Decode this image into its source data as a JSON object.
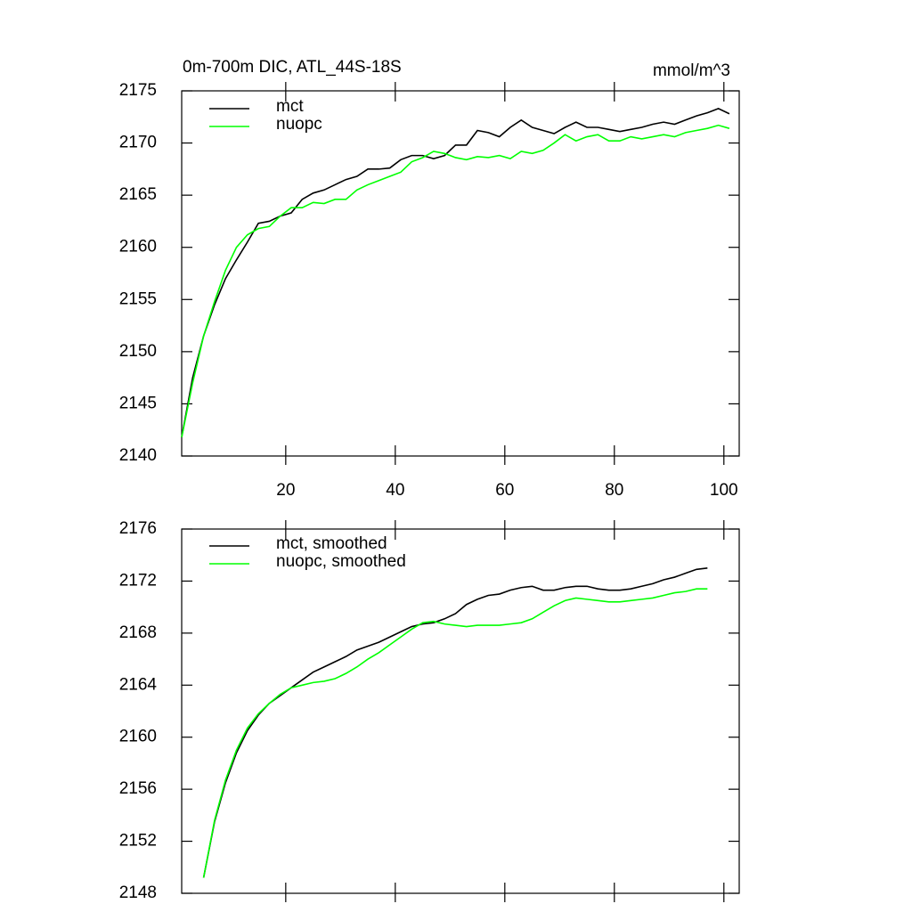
{
  "chart_data": [
    {
      "type": "line",
      "title": "0m-700m DIC, ATL_44S-18S",
      "units": "mmol/m^3",
      "x": [
        1,
        3,
        5,
        7,
        9,
        11,
        13,
        15,
        17,
        19,
        21,
        23,
        25,
        27,
        29,
        31,
        33,
        35,
        37,
        39,
        41,
        43,
        45,
        47,
        49,
        51,
        53,
        55,
        57,
        59,
        61,
        63,
        65,
        67,
        69,
        71,
        73,
        75,
        77,
        79,
        81,
        83,
        85,
        87,
        89,
        91,
        93,
        95,
        97,
        99,
        101
      ],
      "series": [
        {
          "name": "mct",
          "color": "#000000",
          "values": [
            2141.8,
            2147.5,
            2151.5,
            2154.5,
            2157.0,
            2158.8,
            2160.5,
            2162.3,
            2162.5,
            2163.0,
            2163.3,
            2164.6,
            2165.2,
            2165.5,
            2166.0,
            2166.5,
            2166.8,
            2167.5,
            2167.5,
            2167.6,
            2168.4,
            2168.8,
            2168.8,
            2168.5,
            2168.8,
            2169.8,
            2169.8,
            2171.2,
            2171.0,
            2170.6,
            2171.5,
            2172.2,
            2171.5,
            2171.2,
            2170.9,
            2171.5,
            2172.0,
            2171.5,
            2171.5,
            2171.3,
            2171.1,
            2171.3,
            2171.5,
            2171.8,
            2172.0,
            2171.8,
            2172.2,
            2172.6,
            2172.9,
            2173.3,
            2172.8
          ]
        },
        {
          "name": "nuopc",
          "color": "#00ff00",
          "values": [
            2141.8,
            2147.0,
            2151.5,
            2154.8,
            2157.8,
            2160.0,
            2161.2,
            2161.8,
            2162.0,
            2163.0,
            2163.8,
            2163.8,
            2164.3,
            2164.2,
            2164.6,
            2164.6,
            2165.5,
            2166.0,
            2166.4,
            2166.8,
            2167.2,
            2168.2,
            2168.6,
            2169.2,
            2169.0,
            2168.6,
            2168.4,
            2168.7,
            2168.6,
            2168.8,
            2168.5,
            2169.2,
            2169.0,
            2169.3,
            2170.0,
            2170.8,
            2170.2,
            2170.6,
            2170.8,
            2170.2,
            2170.2,
            2170.6,
            2170.4,
            2170.6,
            2170.8,
            2170.6,
            2171.0,
            2171.2,
            2171.4,
            2171.7,
            2171.4
          ]
        }
      ],
      "xlim": [
        1,
        102.8
      ],
      "xticks": [
        20,
        40,
        60,
        80,
        100
      ],
      "ylim": [
        2140,
        2175
      ],
      "yticks": [
        2140,
        2145,
        2150,
        2155,
        2160,
        2165,
        2170,
        2175
      ]
    },
    {
      "type": "line",
      "x": [
        5,
        7,
        9,
        11,
        13,
        15,
        17,
        19,
        21,
        23,
        25,
        27,
        29,
        31,
        33,
        35,
        37,
        39,
        41,
        43,
        45,
        47,
        49,
        51,
        53,
        55,
        57,
        59,
        61,
        63,
        65,
        67,
        69,
        71,
        73,
        75,
        77,
        79,
        81,
        83,
        85,
        87,
        89,
        91,
        93,
        95,
        97
      ],
      "series": [
        {
          "name": "mct, smoothed",
          "color": "#000000",
          "values": [
            2149.2,
            2153.5,
            2156.5,
            2158.8,
            2160.5,
            2161.7,
            2162.6,
            2163.2,
            2163.8,
            2164.4,
            2165.0,
            2165.4,
            2165.8,
            2166.2,
            2166.7,
            2167.0,
            2167.3,
            2167.7,
            2168.1,
            2168.5,
            2168.7,
            2168.8,
            2169.1,
            2169.5,
            2170.2,
            2170.6,
            2170.9,
            2171.0,
            2171.3,
            2171.5,
            2171.6,
            2171.3,
            2171.3,
            2171.5,
            2171.6,
            2171.6,
            2171.4,
            2171.3,
            2171.3,
            2171.4,
            2171.6,
            2171.8,
            2172.1,
            2172.3,
            2172.6,
            2172.9,
            2173.0
          ]
        },
        {
          "name": "nuopc, smoothed",
          "color": "#00ff00",
          "values": [
            2149.2,
            2153.6,
            2156.7,
            2159.0,
            2160.7,
            2161.8,
            2162.6,
            2163.3,
            2163.8,
            2164.0,
            2164.2,
            2164.3,
            2164.5,
            2164.9,
            2165.4,
            2166.0,
            2166.5,
            2167.1,
            2167.7,
            2168.3,
            2168.8,
            2168.9,
            2168.7,
            2168.6,
            2168.5,
            2168.6,
            2168.6,
            2168.6,
            2168.7,
            2168.8,
            2169.1,
            2169.6,
            2170.1,
            2170.5,
            2170.7,
            2170.6,
            2170.5,
            2170.4,
            2170.4,
            2170.5,
            2170.6,
            2170.7,
            2170.9,
            2171.1,
            2171.2,
            2171.4,
            2171.4
          ]
        }
      ],
      "xlim": [
        1,
        102.8
      ],
      "xticks": [
        20,
        40,
        60,
        80,
        100
      ],
      "ylim": [
        2148,
        2176
      ],
      "yticks": [
        2148,
        2152,
        2156,
        2160,
        2164,
        2168,
        2172,
        2176
      ]
    }
  ]
}
